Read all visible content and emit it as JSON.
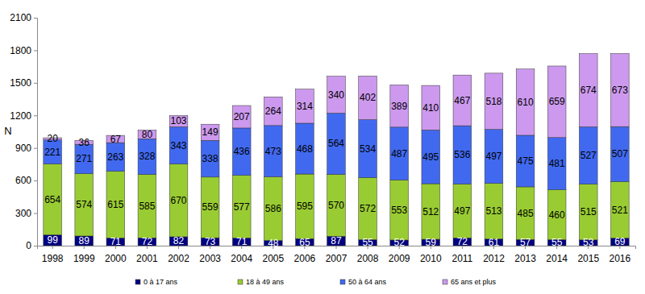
{
  "chart_data": {
    "type": "bar",
    "stacked": true,
    "data_labels": true,
    "grid": false,
    "legend": "bottom",
    "y_label": "N",
    "categories": [
      "1998",
      "1999",
      "2000",
      "2001",
      "2002",
      "2003",
      "2004",
      "2005",
      "2006",
      "2007",
      "2008",
      "2009",
      "2010",
      "2011",
      "2012",
      "2013",
      "2014",
      "2015",
      "2016"
    ],
    "ylim": [
      0,
      2100
    ],
    "yticks": [
      0,
      300,
      600,
      900,
      1200,
      1500,
      1800,
      2100
    ],
    "series": [
      {
        "name": "0 à 17 ans",
        "color": "#000080",
        "values": [
          99,
          89,
          71,
          72,
          82,
          73,
          71,
          48,
          65,
          87,
          55,
          52,
          59,
          72,
          61,
          57,
          55,
          53,
          69
        ]
      },
      {
        "name": "18 à 49 ans",
        "color": "#99cc33",
        "values": [
          654,
          574,
          615,
          585,
          670,
          559,
          577,
          586,
          595,
          570,
          572,
          553,
          512,
          497,
          513,
          485,
          460,
          515,
          521
        ]
      },
      {
        "name": "50 à 64 ans",
        "color": "#4169f0",
        "values": [
          221,
          271,
          263,
          328,
          343,
          338,
          436,
          473,
          468,
          564,
          534,
          487,
          495,
          536,
          497,
          475,
          481,
          527,
          507
        ]
      },
      {
        "name": "65 ans et plus",
        "color": "#cc99ee",
        "values": [
          20,
          36,
          67,
          80,
          103,
          149,
          207,
          264,
          314,
          340,
          402,
          389,
          410,
          467,
          518,
          610,
          659,
          674,
          673
        ]
      }
    ]
  }
}
